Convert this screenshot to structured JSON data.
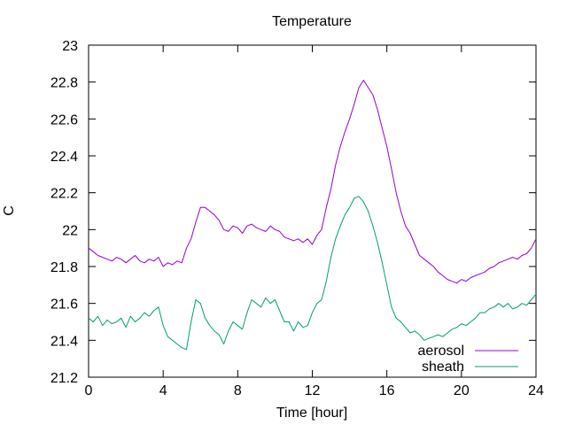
{
  "chart_data": {
    "type": "line",
    "title": "Temperature",
    "xlabel": "Time [hour]",
    "ylabel": "C",
    "xlim": [
      0,
      24
    ],
    "ylim": [
      21.2,
      23.0
    ],
    "xticks": [
      0,
      4,
      8,
      12,
      16,
      20,
      24
    ],
    "xtick_labels": [
      "0",
      "4",
      "8",
      "12",
      "16",
      "20",
      "24"
    ],
    "yticks": [
      21.2,
      21.4,
      21.6,
      21.8,
      22.0,
      22.2,
      22.4,
      22.6,
      22.8,
      23.0
    ],
    "ytick_labels": [
      "21.2",
      "21.4",
      "21.6",
      "21.8",
      "22",
      "22.2",
      "22.4",
      "22.6",
      "22.8",
      "23"
    ],
    "grid": false,
    "legend_position": "bottom-right",
    "series": [
      {
        "name": "aerosol",
        "color": "#9400d3",
        "x": [
          0,
          0.25,
          0.5,
          0.75,
          1,
          1.25,
          1.5,
          1.75,
          2,
          2.25,
          2.5,
          2.75,
          3,
          3.25,
          3.5,
          3.75,
          4,
          4.25,
          4.5,
          4.75,
          5,
          5.25,
          5.5,
          5.75,
          6,
          6.25,
          6.5,
          6.75,
          7,
          7.25,
          7.5,
          7.75,
          8,
          8.25,
          8.5,
          8.75,
          9,
          9.25,
          9.5,
          9.75,
          10,
          10.25,
          10.5,
          10.75,
          11,
          11.25,
          11.5,
          11.75,
          12,
          12.25,
          12.5,
          12.75,
          13,
          13.25,
          13.5,
          13.75,
          14,
          14.25,
          14.5,
          14.75,
          15,
          15.25,
          15.5,
          15.75,
          16,
          16.25,
          16.5,
          16.75,
          17,
          17.25,
          17.5,
          17.75,
          18,
          18.25,
          18.5,
          18.75,
          19,
          19.25,
          19.5,
          19.75,
          20,
          20.25,
          20.5,
          20.75,
          21,
          21.25,
          21.5,
          21.75,
          22,
          22.25,
          22.5,
          22.75,
          23,
          23.25,
          23.5,
          23.75,
          24
        ],
        "y": [
          21.9,
          21.88,
          21.86,
          21.85,
          21.84,
          21.83,
          21.85,
          21.84,
          21.82,
          21.84,
          21.86,
          21.83,
          21.82,
          21.84,
          21.83,
          21.85,
          21.8,
          21.82,
          21.81,
          21.83,
          21.82,
          21.9,
          21.95,
          22.04,
          22.12,
          22.12,
          22.1,
          22.08,
          22.05,
          22.0,
          21.99,
          22.02,
          22.01,
          21.98,
          22.02,
          22.03,
          22.01,
          22.0,
          21.99,
          22.02,
          22.0,
          21.99,
          21.96,
          21.95,
          21.94,
          21.95,
          21.93,
          21.95,
          21.92,
          21.97,
          22.0,
          22.12,
          22.22,
          22.35,
          22.45,
          22.53,
          22.6,
          22.68,
          22.77,
          22.81,
          22.77,
          22.73,
          22.65,
          22.55,
          22.45,
          22.33,
          22.2,
          22.1,
          22.02,
          21.98,
          21.92,
          21.86,
          21.84,
          21.82,
          21.8,
          21.77,
          21.75,
          21.73,
          21.72,
          21.71,
          21.73,
          21.72,
          21.74,
          21.75,
          21.76,
          21.77,
          21.79,
          21.8,
          21.82,
          21.83,
          21.84,
          21.85,
          21.84,
          21.86,
          21.87,
          21.9,
          21.95
        ]
      },
      {
        "name": "sheath",
        "color": "#009e73",
        "x": [
          0,
          0.25,
          0.5,
          0.75,
          1,
          1.25,
          1.5,
          1.75,
          2,
          2.25,
          2.5,
          2.75,
          3,
          3.25,
          3.5,
          3.75,
          4,
          4.25,
          4.5,
          4.75,
          5,
          5.25,
          5.5,
          5.75,
          6,
          6.25,
          6.5,
          6.75,
          7,
          7.25,
          7.5,
          7.75,
          8,
          8.25,
          8.5,
          8.75,
          9,
          9.25,
          9.5,
          9.75,
          10,
          10.25,
          10.5,
          10.75,
          11,
          11.25,
          11.5,
          11.75,
          12,
          12.25,
          12.5,
          12.75,
          13,
          13.25,
          13.5,
          13.75,
          14,
          14.25,
          14.5,
          14.75,
          15,
          15.25,
          15.5,
          15.75,
          16,
          16.25,
          16.5,
          16.75,
          17,
          17.25,
          17.5,
          17.75,
          18,
          18.25,
          18.5,
          18.75,
          19,
          19.25,
          19.5,
          19.75,
          20,
          20.25,
          20.5,
          20.75,
          21,
          21.25,
          21.5,
          21.75,
          22,
          22.25,
          22.5,
          22.75,
          23,
          23.25,
          23.5,
          23.75,
          24
        ],
        "y": [
          21.52,
          21.5,
          21.53,
          21.48,
          21.51,
          21.49,
          21.5,
          21.52,
          21.47,
          21.53,
          21.5,
          21.52,
          21.55,
          21.53,
          21.56,
          21.58,
          21.48,
          21.42,
          21.4,
          21.38,
          21.36,
          21.35,
          21.5,
          21.62,
          21.6,
          21.52,
          21.48,
          21.45,
          21.43,
          21.38,
          21.45,
          21.5,
          21.48,
          21.46,
          21.55,
          21.62,
          21.6,
          21.58,
          21.63,
          21.6,
          21.62,
          21.56,
          21.5,
          21.5,
          21.45,
          21.5,
          21.47,
          21.48,
          21.55,
          21.6,
          21.62,
          21.72,
          21.85,
          21.95,
          22.02,
          22.08,
          22.12,
          22.17,
          22.18,
          22.15,
          22.1,
          22.02,
          21.93,
          21.82,
          21.7,
          21.58,
          21.52,
          21.5,
          21.47,
          21.44,
          21.45,
          21.43,
          21.4,
          21.41,
          21.42,
          21.43,
          21.42,
          21.44,
          21.46,
          21.47,
          21.49,
          21.48,
          21.5,
          21.52,
          21.55,
          21.55,
          21.57,
          21.58,
          21.6,
          21.58,
          21.6,
          21.57,
          21.58,
          21.6,
          21.59,
          21.62,
          21.65
        ]
      }
    ]
  }
}
